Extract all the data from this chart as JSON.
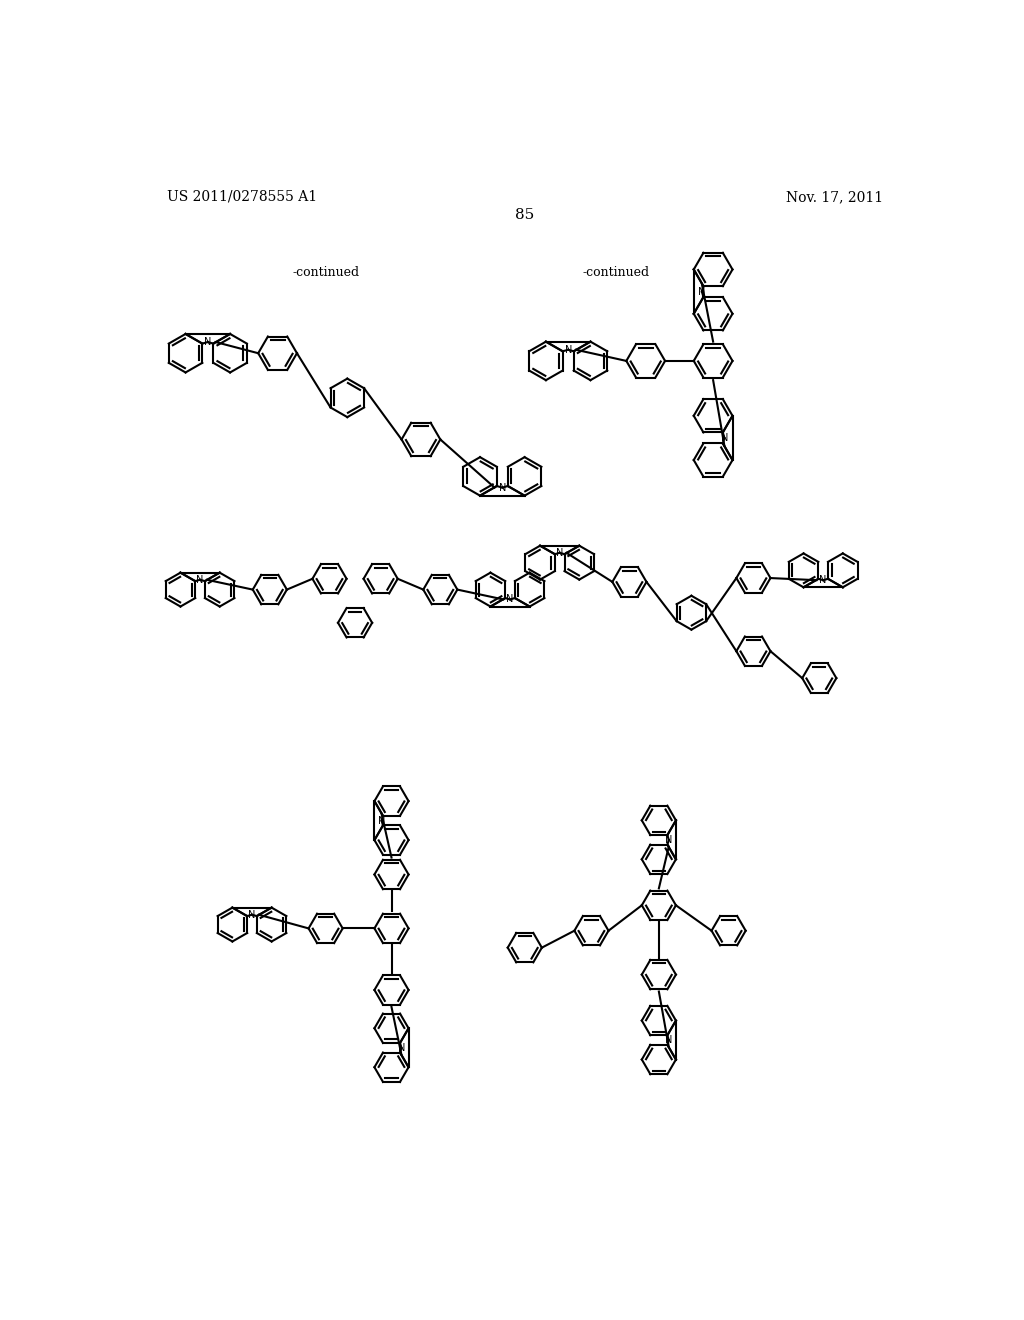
{
  "patent_left": "US 2011/0278555 A1",
  "patent_right": "Nov. 17, 2011",
  "page_number": "85",
  "continued_label": "-continued",
  "background_color": "#ffffff",
  "text_color": "#000000",
  "line_color": "#000000",
  "line_width": 1.5,
  "figure_width": 10.24,
  "figure_height": 13.2
}
